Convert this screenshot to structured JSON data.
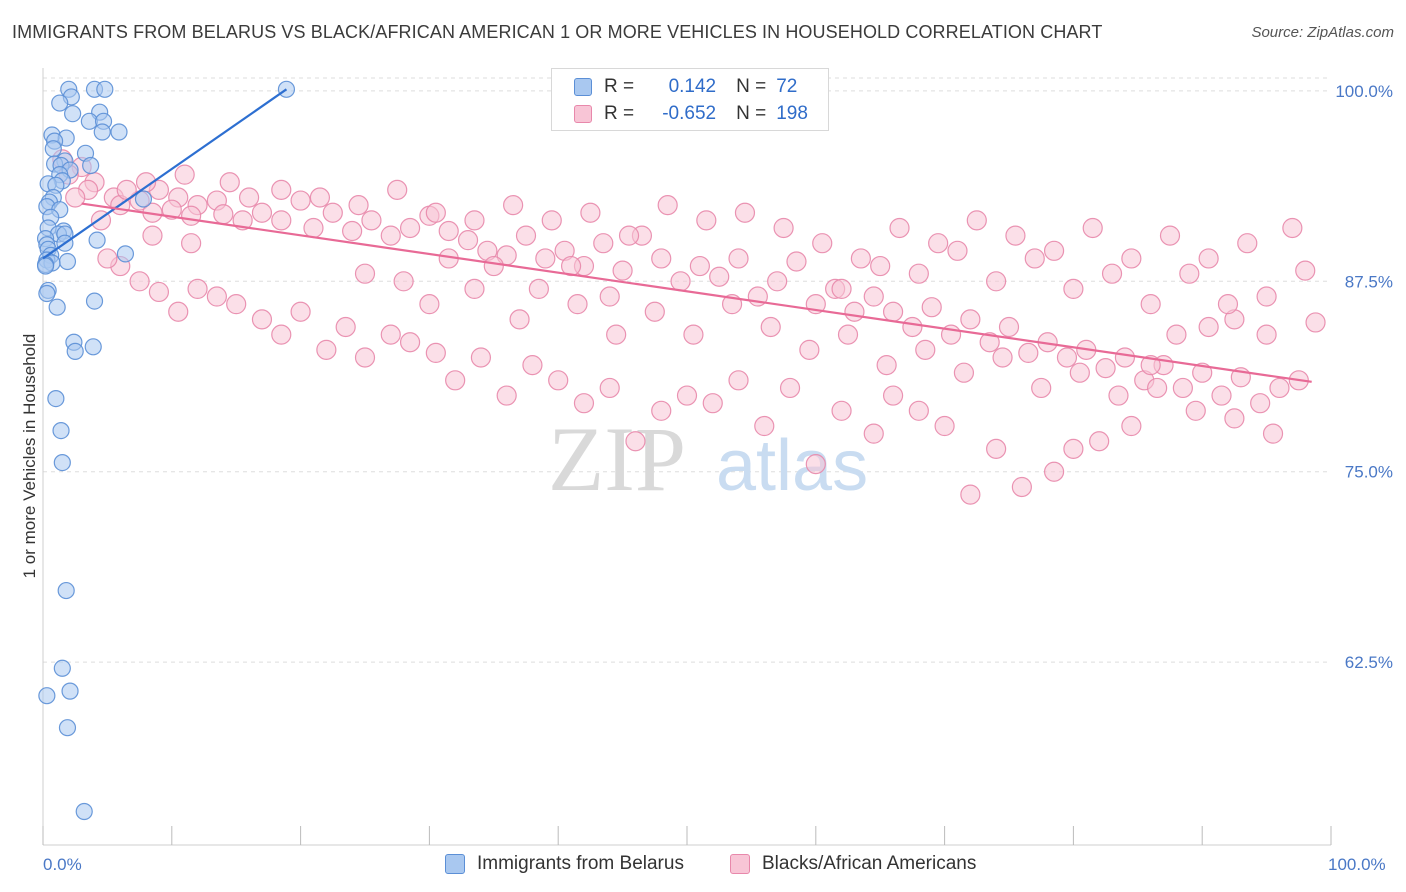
{
  "title": "IMMIGRANTS FROM BELARUS VS BLACK/AFRICAN AMERICAN 1 OR MORE VEHICLES IN HOUSEHOLD CORRELATION CHART",
  "source": "Source: ZipAtlas.com",
  "watermark": {
    "zip": "ZIP",
    "atlas": "atlas"
  },
  "legend": {
    "r_label": "R =",
    "n_label": "N =",
    "rows": [
      {
        "r": "0.142",
        "n": "72",
        "color": "#a9c8f0",
        "border": "#5b8fd6"
      },
      {
        "r": "-0.652",
        "n": "198",
        "color": "#f8c5d6",
        "border": "#e888ab"
      }
    ]
  },
  "chart_data": {
    "type": "scatter",
    "title": "IMMIGRANTS FROM BELARUS VS BLACK/AFRICAN AMERICAN 1 OR MORE VEHICLES IN HOUSEHOLD CORRELATION CHART",
    "xlabel": "",
    "ylabel": "1 or more Vehicles in Household",
    "xlim": [
      0,
      100
    ],
    "ylim": [
      50.5,
      101.5
    ],
    "x_tick_labels": [
      "0.0%",
      "100.0%"
    ],
    "y_ticks": [
      62.5,
      75.0,
      87.5,
      100.0
    ],
    "y_tick_labels": [
      "62.5%",
      "75.0%",
      "87.5%",
      "100.0%"
    ],
    "grid": "horizontal dashed",
    "series": [
      {
        "name": "Immigrants from Belarus",
        "color": "#a9c8f0",
        "stroke": "#5b8fd6",
        "trend_color": "#2d6fd1",
        "trend": {
          "x0": 0,
          "y0": 89.0,
          "x1": 18.9,
          "y1": 100.1
        },
        "points": [
          [
            2.0,
            100.1
          ],
          [
            4.0,
            100.1
          ],
          [
            4.8,
            100.1
          ],
          [
            18.9,
            100.1
          ],
          [
            2.2,
            99.6
          ],
          [
            1.3,
            99.2
          ],
          [
            4.4,
            98.6
          ],
          [
            2.3,
            98.5
          ],
          [
            3.6,
            98.0
          ],
          [
            4.7,
            98.0
          ],
          [
            4.6,
            97.3
          ],
          [
            5.9,
            97.3
          ],
          [
            0.7,
            97.1
          ],
          [
            1.8,
            96.9
          ],
          [
            0.9,
            96.7
          ],
          [
            0.8,
            96.2
          ],
          [
            3.3,
            95.9
          ],
          [
            1.7,
            95.4
          ],
          [
            0.9,
            95.2
          ],
          [
            1.4,
            95.1
          ],
          [
            3.7,
            95.1
          ],
          [
            2.1,
            94.8
          ],
          [
            1.3,
            94.5
          ],
          [
            1.5,
            94.1
          ],
          [
            0.4,
            93.9
          ],
          [
            1.0,
            93.8
          ],
          [
            0.8,
            93.0
          ],
          [
            7.8,
            92.9
          ],
          [
            0.5,
            92.7
          ],
          [
            0.3,
            92.4
          ],
          [
            1.3,
            92.2
          ],
          [
            0.6,
            91.7
          ],
          [
            0.4,
            91.0
          ],
          [
            1.6,
            90.8
          ],
          [
            1.2,
            90.6
          ],
          [
            1.7,
            90.6
          ],
          [
            0.2,
            90.3
          ],
          [
            4.2,
            90.2
          ],
          [
            1.7,
            90.0
          ],
          [
            0.3,
            89.9
          ],
          [
            0.4,
            89.6
          ],
          [
            6.4,
            89.3
          ],
          [
            0.6,
            89.2
          ],
          [
            0.3,
            88.9
          ],
          [
            1.9,
            88.8
          ],
          [
            0.7,
            88.7
          ],
          [
            0.2,
            88.6
          ],
          [
            0.2,
            88.5
          ],
          [
            0.4,
            86.9
          ],
          [
            0.3,
            86.7
          ],
          [
            4.0,
            86.2
          ],
          [
            1.1,
            85.8
          ],
          [
            2.4,
            83.5
          ],
          [
            3.9,
            83.2
          ],
          [
            2.5,
            82.9
          ],
          [
            1.0,
            79.8
          ],
          [
            1.4,
            77.7
          ],
          [
            1.5,
            75.6
          ],
          [
            1.8,
            67.2
          ],
          [
            1.5,
            62.1
          ],
          [
            0.3,
            60.3
          ],
          [
            2.1,
            60.6
          ],
          [
            1.9,
            58.2
          ],
          [
            3.2,
            52.7
          ]
        ]
      },
      {
        "name": "Blacks/African Americans",
        "color": "#f8c5d6",
        "stroke": "#e888ab",
        "trend_color": "#e86a96",
        "trend": {
          "x0": 3.0,
          "y0": 92.6,
          "x1": 98.5,
          "y1": 80.9
        },
        "points": [
          [
            1.5,
            95.5
          ],
          [
            3.0,
            95.0
          ],
          [
            2.0,
            94.5
          ],
          [
            4.0,
            94.0
          ],
          [
            3.5,
            93.5
          ],
          [
            5.5,
            93.0
          ],
          [
            2.5,
            93.0
          ],
          [
            6.0,
            92.5
          ],
          [
            7.5,
            92.8
          ],
          [
            9.0,
            93.5
          ],
          [
            10.5,
            93.0
          ],
          [
            12.0,
            92.5
          ],
          [
            13.5,
            92.8
          ],
          [
            8.5,
            92.0
          ],
          [
            10.0,
            92.2
          ],
          [
            11.5,
            91.8
          ],
          [
            14.0,
            91.9
          ],
          [
            15.5,
            91.5
          ],
          [
            17.0,
            92.0
          ],
          [
            18.5,
            91.5
          ],
          [
            20.0,
            92.8
          ],
          [
            21.0,
            91.0
          ],
          [
            22.5,
            92.0
          ],
          [
            24.0,
            90.8
          ],
          [
            25.5,
            91.5
          ],
          [
            27.0,
            90.5
          ],
          [
            28.5,
            91.0
          ],
          [
            30.0,
            91.8
          ],
          [
            31.5,
            90.8
          ],
          [
            33.0,
            90.2
          ],
          [
            34.5,
            89.5
          ],
          [
            36.0,
            89.2
          ],
          [
            37.5,
            90.5
          ],
          [
            39.0,
            89.0
          ],
          [
            40.5,
            89.5
          ],
          [
            42.0,
            88.5
          ],
          [
            43.5,
            90.0
          ],
          [
            45.0,
            88.2
          ],
          [
            46.5,
            90.5
          ],
          [
            48.0,
            89.0
          ],
          [
            49.5,
            87.5
          ],
          [
            51.0,
            88.5
          ],
          [
            52.5,
            87.8
          ],
          [
            54.0,
            89.0
          ],
          [
            55.5,
            86.5
          ],
          [
            57.0,
            87.5
          ],
          [
            58.5,
            88.8
          ],
          [
            60.0,
            86.0
          ],
          [
            61.5,
            87.0
          ],
          [
            63.0,
            85.5
          ],
          [
            64.5,
            86.5
          ],
          [
            66.0,
            85.5
          ],
          [
            67.5,
            84.5
          ],
          [
            69.0,
            85.8
          ],
          [
            70.5,
            84.0
          ],
          [
            72.0,
            85.0
          ],
          [
            73.5,
            83.5
          ],
          [
            75.0,
            84.5
          ],
          [
            76.5,
            82.8
          ],
          [
            78.0,
            83.5
          ],
          [
            79.5,
            82.5
          ],
          [
            81.0,
            83.0
          ],
          [
            82.5,
            81.8
          ],
          [
            84.0,
            82.5
          ],
          [
            85.5,
            81.0
          ],
          [
            87.0,
            82.0
          ],
          [
            88.5,
            80.5
          ],
          [
            90.0,
            81.5
          ],
          [
            91.5,
            80.0
          ],
          [
            93.0,
            81.2
          ],
          [
            94.5,
            79.5
          ],
          [
            96.0,
            80.5
          ],
          [
            97.5,
            81.0
          ],
          [
            98.8,
            84.8
          ],
          [
            98.0,
            88.2
          ],
          [
            97.0,
            91.0
          ],
          [
            95.0,
            86.5
          ],
          [
            92.5,
            85.0
          ],
          [
            90.5,
            84.5
          ],
          [
            88.0,
            84.0
          ],
          [
            86.0,
            82.0
          ],
          [
            84.5,
            78.0
          ],
          [
            82.0,
            77.0
          ],
          [
            80.0,
            76.5
          ],
          [
            78.5,
            75.0
          ],
          [
            76.0,
            74.0
          ],
          [
            74.0,
            76.5
          ],
          [
            72.0,
            73.5
          ],
          [
            70.0,
            78.0
          ],
          [
            68.0,
            79.0
          ],
          [
            66.0,
            80.0
          ],
          [
            64.5,
            77.5
          ],
          [
            62.0,
            79.0
          ],
          [
            60.0,
            75.5
          ],
          [
            58.0,
            80.5
          ],
          [
            56.0,
            78.0
          ],
          [
            54.0,
            81.0
          ],
          [
            52.0,
            79.5
          ],
          [
            50.0,
            80.0
          ],
          [
            48.0,
            79.0
          ],
          [
            46.0,
            77.0
          ],
          [
            44.0,
            80.5
          ],
          [
            42.0,
            79.5
          ],
          [
            40.0,
            81.0
          ],
          [
            38.0,
            82.0
          ],
          [
            36.0,
            80.0
          ],
          [
            34.0,
            82.5
          ],
          [
            32.0,
            81.0
          ],
          [
            30.5,
            82.8
          ],
          [
            28.5,
            83.5
          ],
          [
            27.0,
            84.0
          ],
          [
            25.0,
            82.5
          ],
          [
            23.5,
            84.5
          ],
          [
            22.0,
            83.0
          ],
          [
            20.0,
            85.5
          ],
          [
            18.5,
            84.0
          ],
          [
            17.0,
            85.0
          ],
          [
            15.0,
            86.0
          ],
          [
            13.5,
            86.5
          ],
          [
            12.0,
            87.0
          ],
          [
            10.5,
            85.5
          ],
          [
            9.0,
            86.8
          ],
          [
            7.5,
            87.5
          ],
          [
            6.0,
            88.5
          ],
          [
            5.0,
            89.0
          ],
          [
            30.0,
            86.0
          ],
          [
            33.5,
            87.0
          ],
          [
            37.0,
            85.0
          ],
          [
            41.5,
            86.0
          ],
          [
            44.5,
            84.0
          ],
          [
            47.5,
            85.5
          ],
          [
            50.5,
            84.0
          ],
          [
            53.5,
            86.0
          ],
          [
            56.5,
            84.5
          ],
          [
            59.5,
            83.0
          ],
          [
            62.5,
            84.0
          ],
          [
            65.5,
            82.0
          ],
          [
            68.5,
            83.0
          ],
          [
            71.5,
            81.5
          ],
          [
            74.5,
            82.5
          ],
          [
            77.5,
            80.5
          ],
          [
            80.5,
            81.5
          ],
          [
            83.5,
            80.0
          ],
          [
            86.5,
            80.5
          ],
          [
            89.5,
            79.0
          ],
          [
            92.5,
            78.5
          ],
          [
            95.5,
            77.5
          ],
          [
            62.0,
            87.0
          ],
          [
            65.0,
            88.5
          ],
          [
            68.0,
            88.0
          ],
          [
            71.0,
            89.5
          ],
          [
            74.0,
            87.5
          ],
          [
            77.0,
            89.0
          ],
          [
            80.0,
            87.0
          ],
          [
            83.0,
            88.0
          ],
          [
            86.0,
            86.0
          ],
          [
            89.0,
            88.0
          ],
          [
            92.0,
            86.0
          ],
          [
            95.0,
            84.0
          ],
          [
            60.5,
            90.0
          ],
          [
            63.5,
            89.0
          ],
          [
            66.5,
            91.0
          ],
          [
            69.5,
            90.0
          ],
          [
            72.5,
            91.5
          ],
          [
            75.5,
            90.5
          ],
          [
            78.5,
            89.5
          ],
          [
            81.5,
            91.0
          ],
          [
            84.5,
            89.0
          ],
          [
            87.5,
            90.5
          ],
          [
            90.5,
            89.0
          ],
          [
            93.5,
            90.0
          ],
          [
            57.5,
            91.0
          ],
          [
            54.5,
            92.0
          ],
          [
            51.5,
            91.5
          ],
          [
            48.5,
            92.5
          ],
          [
            45.5,
            90.5
          ],
          [
            42.5,
            92.0
          ],
          [
            39.5,
            91.5
          ],
          [
            36.5,
            92.5
          ],
          [
            33.5,
            91.5
          ],
          [
            30.5,
            92.0
          ],
          [
            27.5,
            93.5
          ],
          [
            24.5,
            92.5
          ],
          [
            21.5,
            93.0
          ],
          [
            18.5,
            93.5
          ],
          [
            16.0,
            93.0
          ],
          [
            14.5,
            94.0
          ],
          [
            11.0,
            94.5
          ],
          [
            8.0,
            94.0
          ],
          [
            6.5,
            93.5
          ],
          [
            4.5,
            91.5
          ],
          [
            8.5,
            90.5
          ],
          [
            11.5,
            90.0
          ],
          [
            25.0,
            88.0
          ],
          [
            28.0,
            87.5
          ],
          [
            31.5,
            89.0
          ],
          [
            35.0,
            88.5
          ],
          [
            38.5,
            87.0
          ],
          [
            41.0,
            88.5
          ],
          [
            44.0,
            86.5
          ]
        ]
      }
    ]
  }
}
